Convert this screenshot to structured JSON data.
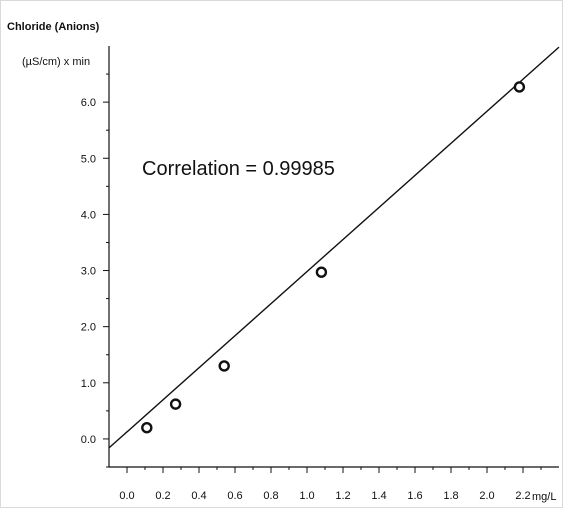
{
  "chart_data": {
    "type": "scatter",
    "title": "Chloride (Anions)",
    "ylabel": "(µS/cm) x min",
    "xlabel": "mg/L",
    "annotation": "Correlation = 0.99985",
    "x_ticks": [
      "0.0",
      "0.2",
      "0.4",
      "0.6",
      "0.8",
      "1.0",
      "1.2",
      "1.4",
      "1.6",
      "1.8",
      "2.0",
      "2.2"
    ],
    "y_ticks": [
      "0.0",
      "1.0",
      "2.0",
      "3.0",
      "4.0",
      "5.0",
      "6.0"
    ],
    "xlim": [
      -0.1,
      2.4
    ],
    "ylim": [
      -0.5,
      7.0
    ],
    "grid": false,
    "points": [
      {
        "x": 0.11,
        "y": 0.2
      },
      {
        "x": 0.27,
        "y": 0.62
      },
      {
        "x": 0.54,
        "y": 1.3
      },
      {
        "x": 1.08,
        "y": 2.97
      },
      {
        "x": 2.18,
        "y": 6.27
      }
    ],
    "fit_line": {
      "x": [
        -0.1,
        2.4
      ],
      "y": [
        -0.16,
        6.98
      ]
    },
    "colors": {
      "axis": "#111111",
      "marker": "#111111",
      "background": "#ffffff"
    }
  }
}
